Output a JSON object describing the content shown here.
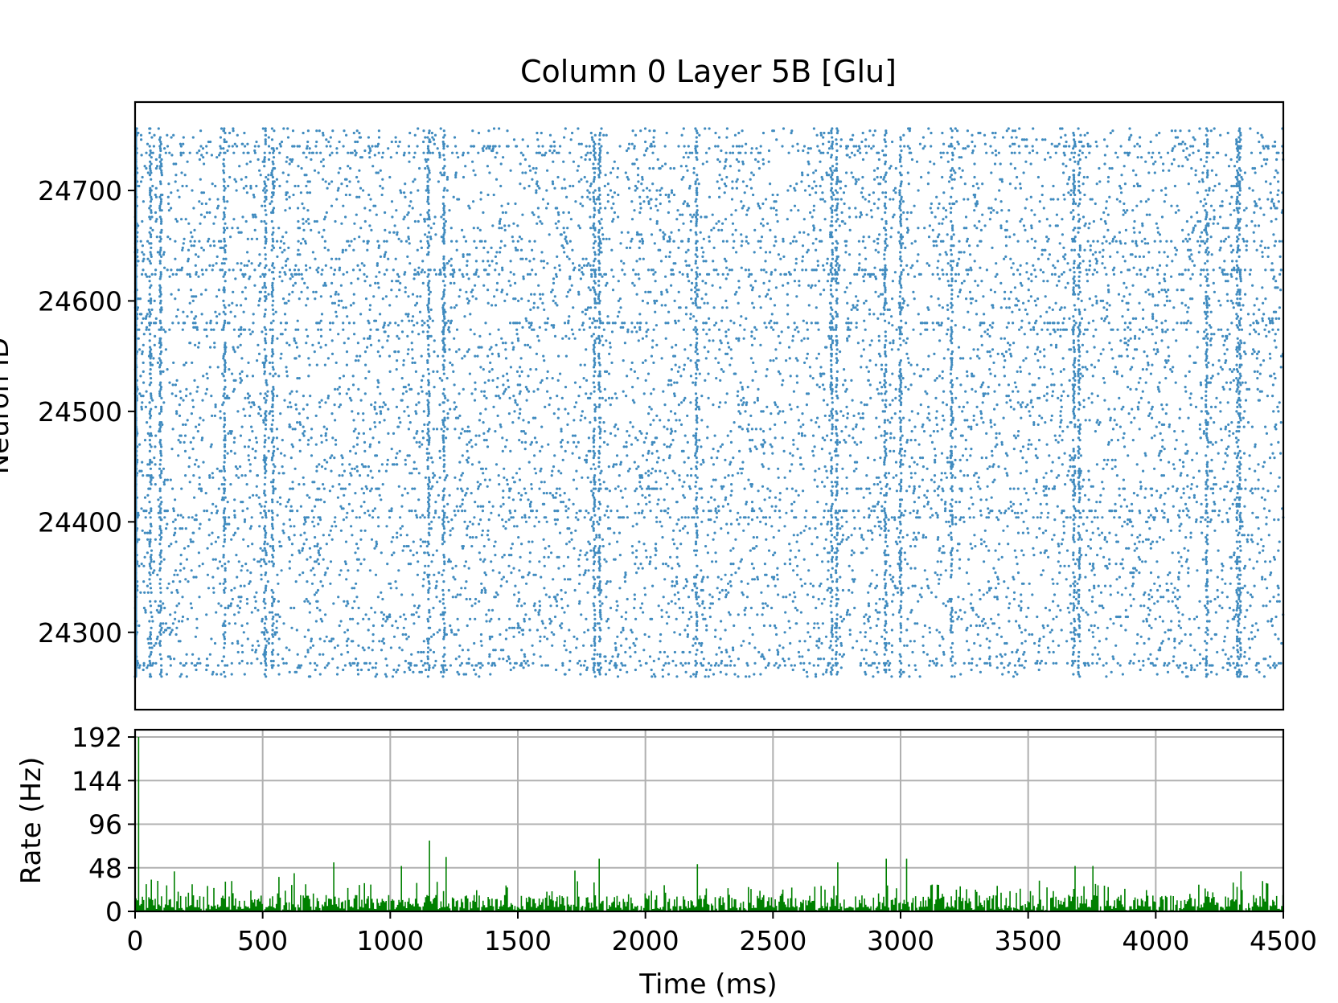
{
  "chart_data": [
    {
      "type": "scatter",
      "title": "Column 0 Layer 5B [Glu]",
      "ylabel": "Neuron ID",
      "xlim": [
        0,
        4500
      ],
      "ylim": [
        24230,
        24780
      ],
      "yticks": [
        24300,
        24400,
        24500,
        24600,
        24700
      ],
      "xticks_shown": false,
      "grid": false,
      "neuron_id_range": [
        24260,
        24756
      ],
      "color": "#1f77b4",
      "description_of_points": "Dense raster of spike times (ms) for neurons 24260-24756 across 0-4500 ms",
      "dense_neuron_rows": [
        24270,
        24273,
        24405,
        24410,
        24430,
        24575,
        24580,
        24625,
        24628,
        24655,
        24735,
        24740
      ],
      "burst_times": [
        5,
        60,
        100,
        350,
        510,
        540,
        1150,
        1210,
        1800,
        1820,
        2200,
        2730,
        2750,
        2940,
        3000,
        3200,
        3680,
        3700,
        4200,
        4320,
        4330
      ]
    },
    {
      "type": "bar",
      "xlabel": "Time (ms)",
      "ylabel": "Rate (Hz)",
      "xlim": [
        0,
        4500
      ],
      "ylim": [
        0,
        200
      ],
      "xticks": [
        0,
        500,
        1000,
        1500,
        2000,
        2500,
        3000,
        3500,
        4000,
        4500
      ],
      "yticks": [
        0,
        48,
        96,
        144,
        192
      ],
      "grid": true,
      "color": "#008000",
      "bin_width_ms": 5,
      "peaks": [
        {
          "x": 10,
          "y": 192
        },
        {
          "x": 40,
          "y": 30
        },
        {
          "x": 60,
          "y": 35
        },
        {
          "x": 150,
          "y": 44
        },
        {
          "x": 380,
          "y": 20
        },
        {
          "x": 560,
          "y": 38
        },
        {
          "x": 620,
          "y": 42
        },
        {
          "x": 775,
          "y": 54
        },
        {
          "x": 1040,
          "y": 50
        },
        {
          "x": 1150,
          "y": 78
        },
        {
          "x": 1215,
          "y": 60
        },
        {
          "x": 1720,
          "y": 45
        },
        {
          "x": 1815,
          "y": 58
        },
        {
          "x": 2200,
          "y": 52
        },
        {
          "x": 2750,
          "y": 54
        },
        {
          "x": 2940,
          "y": 58
        },
        {
          "x": 3020,
          "y": 58
        },
        {
          "x": 3680,
          "y": 50
        },
        {
          "x": 3750,
          "y": 50
        },
        {
          "x": 4330,
          "y": 44
        }
      ]
    }
  ]
}
